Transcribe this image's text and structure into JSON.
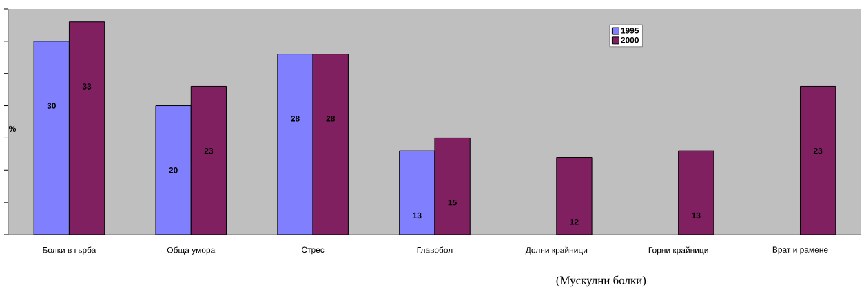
{
  "chart_data": {
    "type": "bar",
    "categories": [
      "Болки в гърба",
      "Обща умора",
      "Стрес",
      "Главобол",
      "Долни крайници",
      "Горни крайници",
      "Врат и рамене"
    ],
    "series": [
      {
        "name": "1995",
        "color": "#8080ff",
        "values": [
          30,
          20,
          28,
          13,
          null,
          null,
          null
        ]
      },
      {
        "name": "2000",
        "color": "#802060",
        "values": [
          33,
          23,
          28,
          15,
          12,
          13,
          23
        ]
      }
    ],
    "ylabel": "%",
    "xlabel": "(Мускулни болки)",
    "ylim": [
      0,
      35
    ],
    "yticks": [
      {
        "value": 0,
        "label": null
      },
      {
        "value": 5,
        "label": null
      },
      {
        "value": 10,
        "label": null
      },
      {
        "value": 15,
        "label": null
      },
      {
        "value": 20,
        "label": null
      },
      {
        "value": 25,
        "label": null
      },
      {
        "value": 30,
        "label": null
      },
      {
        "value": 35,
        "label": null
      }
    ],
    "tick_labels": "x",
    "data_labels": true,
    "legend": "top right",
    "grid": false
  }
}
